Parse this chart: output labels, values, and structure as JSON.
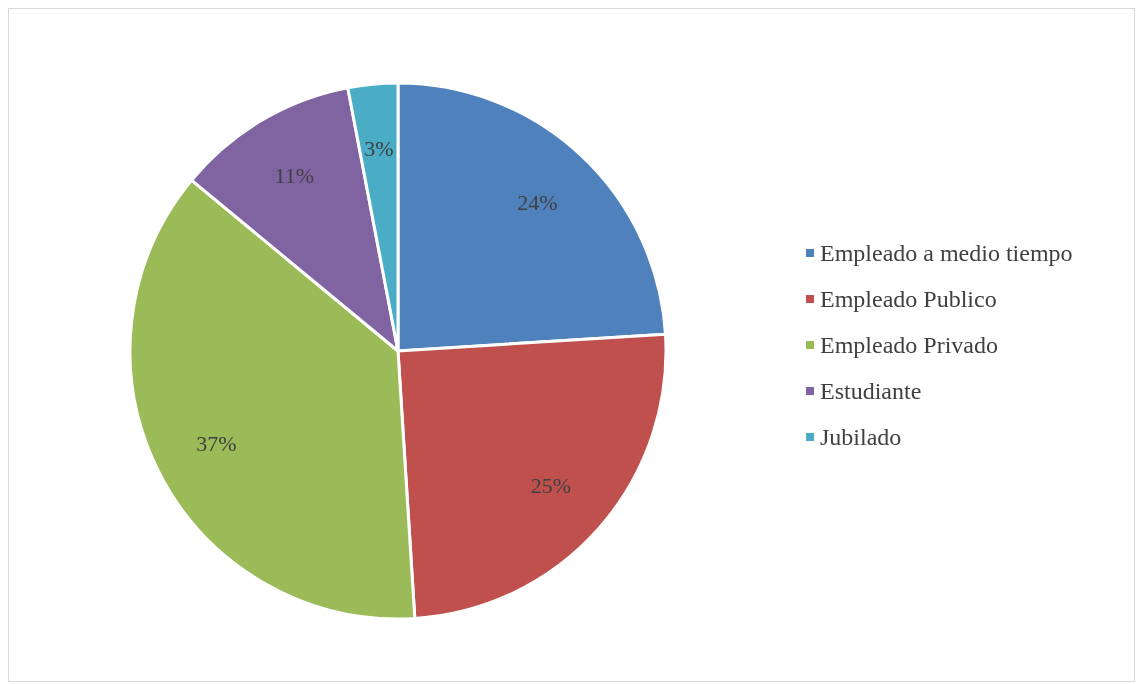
{
  "chart_data": {
    "type": "pie",
    "categories": [
      "Empleado a medio tiempo",
      "Empleado Publico",
      "Empleado Privado",
      "Estudiante",
      "Jubilado"
    ],
    "values": [
      24,
      25,
      37,
      11,
      3
    ],
    "colors": [
      "#4f81bd",
      "#c0504d",
      "#9bbb59",
      "#8064a2",
      "#4bacc6"
    ],
    "value_labels": [
      "24%",
      "25%",
      "37%",
      "11%",
      "3%"
    ],
    "legend": "right"
  }
}
